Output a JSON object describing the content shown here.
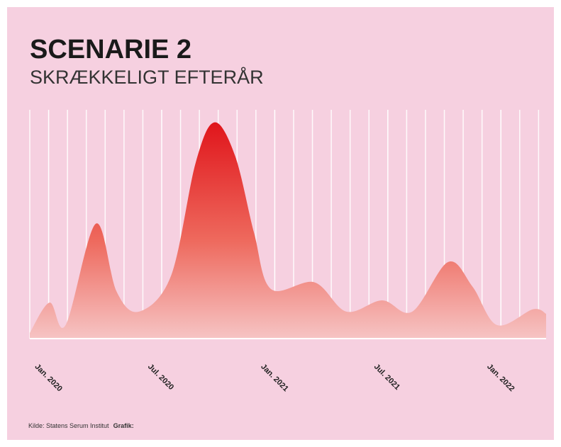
{
  "chart_data": {
    "type": "area",
    "title": "SCENARIE 2",
    "subtitle": "SKRÆKKELIGT EFTERÅR",
    "source": "Kilde: Statens Serum Institut",
    "credit": "Grafik:",
    "color": "#e0151b",
    "x": [
      -1,
      0.05,
      0.9,
      2.5,
      3.6,
      4.8,
      6.5,
      7.8,
      8.8,
      9.9,
      10.9,
      11.8,
      14.1,
      15.8,
      17.7,
      19.3,
      21.2,
      22.5,
      23.8,
      25.7,
      26.4
    ],
    "values": [
      2.5,
      16,
      6,
      51,
      21,
      12,
      28,
      78,
      96,
      81,
      47,
      22,
      25,
      12,
      17,
      12,
      34,
      23,
      6,
      13,
      11
    ],
    "xlim": [
      -1,
      26.4
    ],
    "ylim": [
      0,
      100
    ],
    "xticks": [
      {
        "value": 0,
        "label": "Jan. 2020"
      },
      {
        "value": 6,
        "label": "Jul. 2020"
      },
      {
        "value": 12,
        "label": "Jan. 2021"
      },
      {
        "value": 18,
        "label": "Jul. 2021"
      },
      {
        "value": 24,
        "label": "Jan. 2022"
      }
    ],
    "grid": true
  }
}
